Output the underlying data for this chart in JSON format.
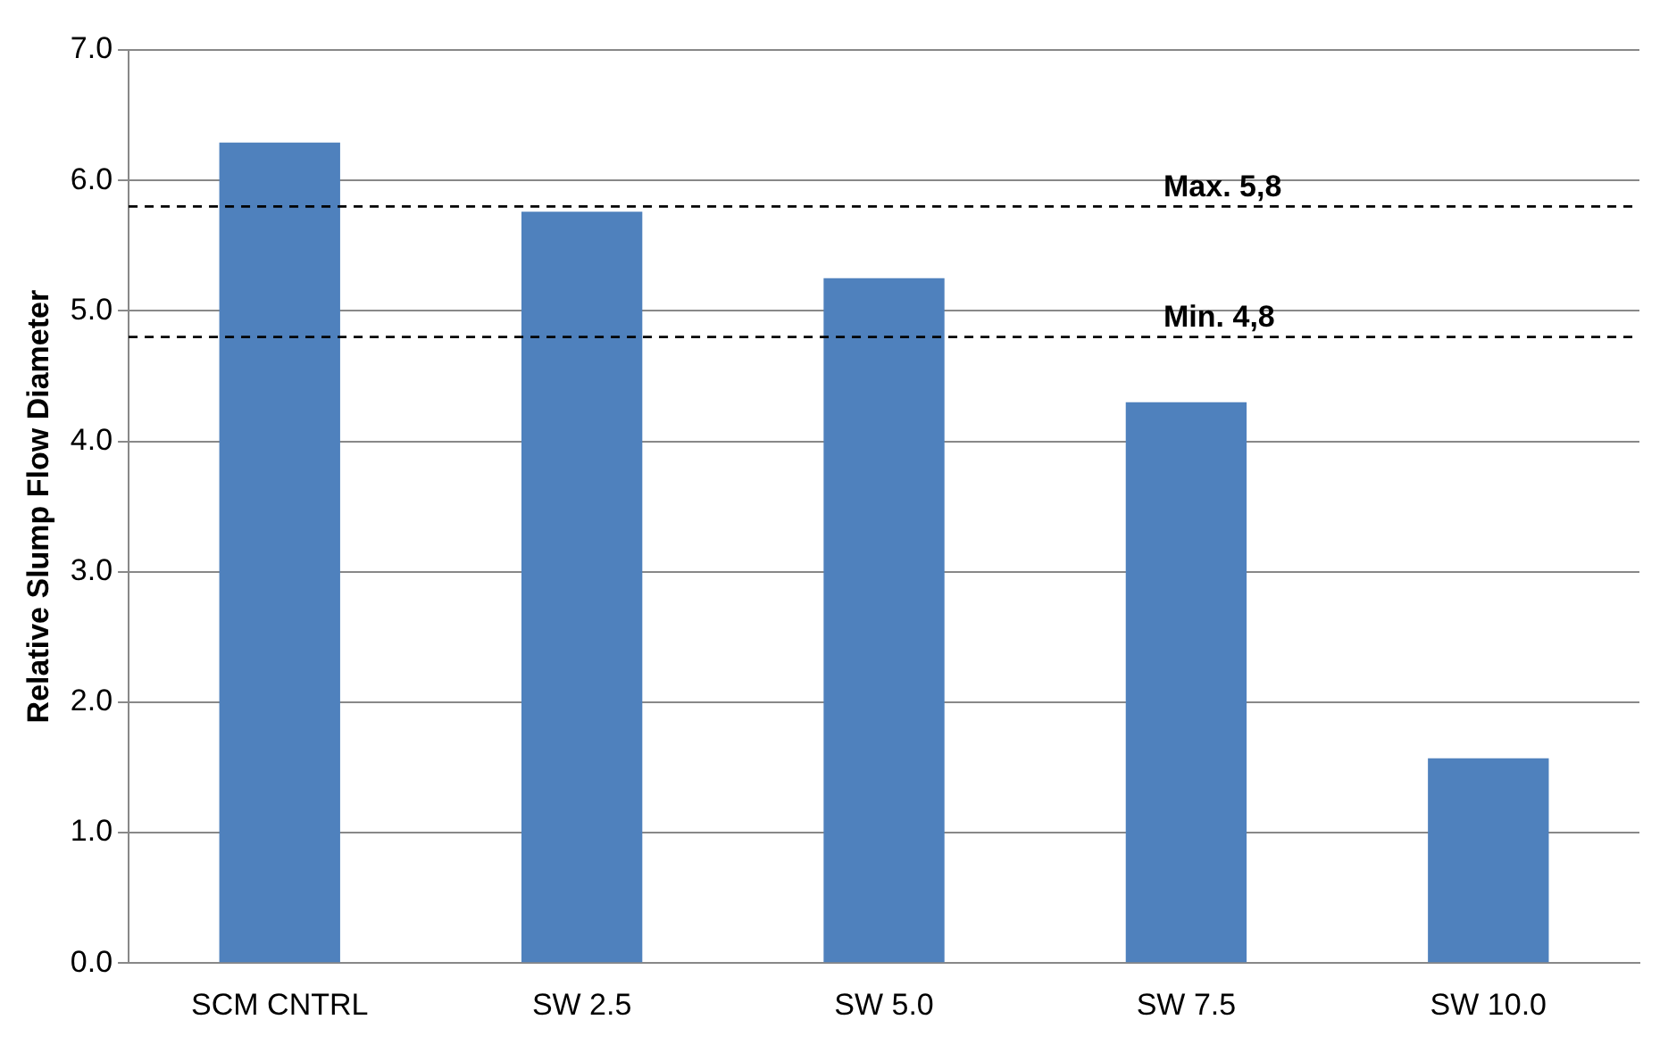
{
  "chart_data": {
    "type": "bar",
    "ylabel": "Relative Slump Flow Diameter",
    "categories": [
      "SCM CNTRL",
      "SW 2.5",
      "SW 5.0",
      "SW 7.5",
      "SW 10.0"
    ],
    "values": [
      6.29,
      5.76,
      5.25,
      4.3,
      1.57
    ],
    "color": "#4f81bd",
    "ylim": [
      0,
      7
    ],
    "yticks": [
      {
        "value": 0,
        "label": "0.0"
      },
      {
        "value": 1,
        "label": "1.0"
      },
      {
        "value": 2,
        "label": "2.0"
      },
      {
        "value": 3,
        "label": "3.0"
      },
      {
        "value": 4,
        "label": "4.0"
      },
      {
        "value": 5,
        "label": "5.0"
      },
      {
        "value": 6,
        "label": "6.0"
      },
      {
        "value": 7,
        "label": "7.0"
      }
    ],
    "grid": "y",
    "legend": false,
    "ref_lines": [
      {
        "axis": "y",
        "value": 5.8,
        "label": "Max. 5,8",
        "color": "#000000",
        "line_style": "dashed"
      },
      {
        "axis": "y",
        "value": 4.8,
        "label": "Min. 4,8",
        "color": "#000000",
        "line_style": "dashed"
      }
    ]
  }
}
